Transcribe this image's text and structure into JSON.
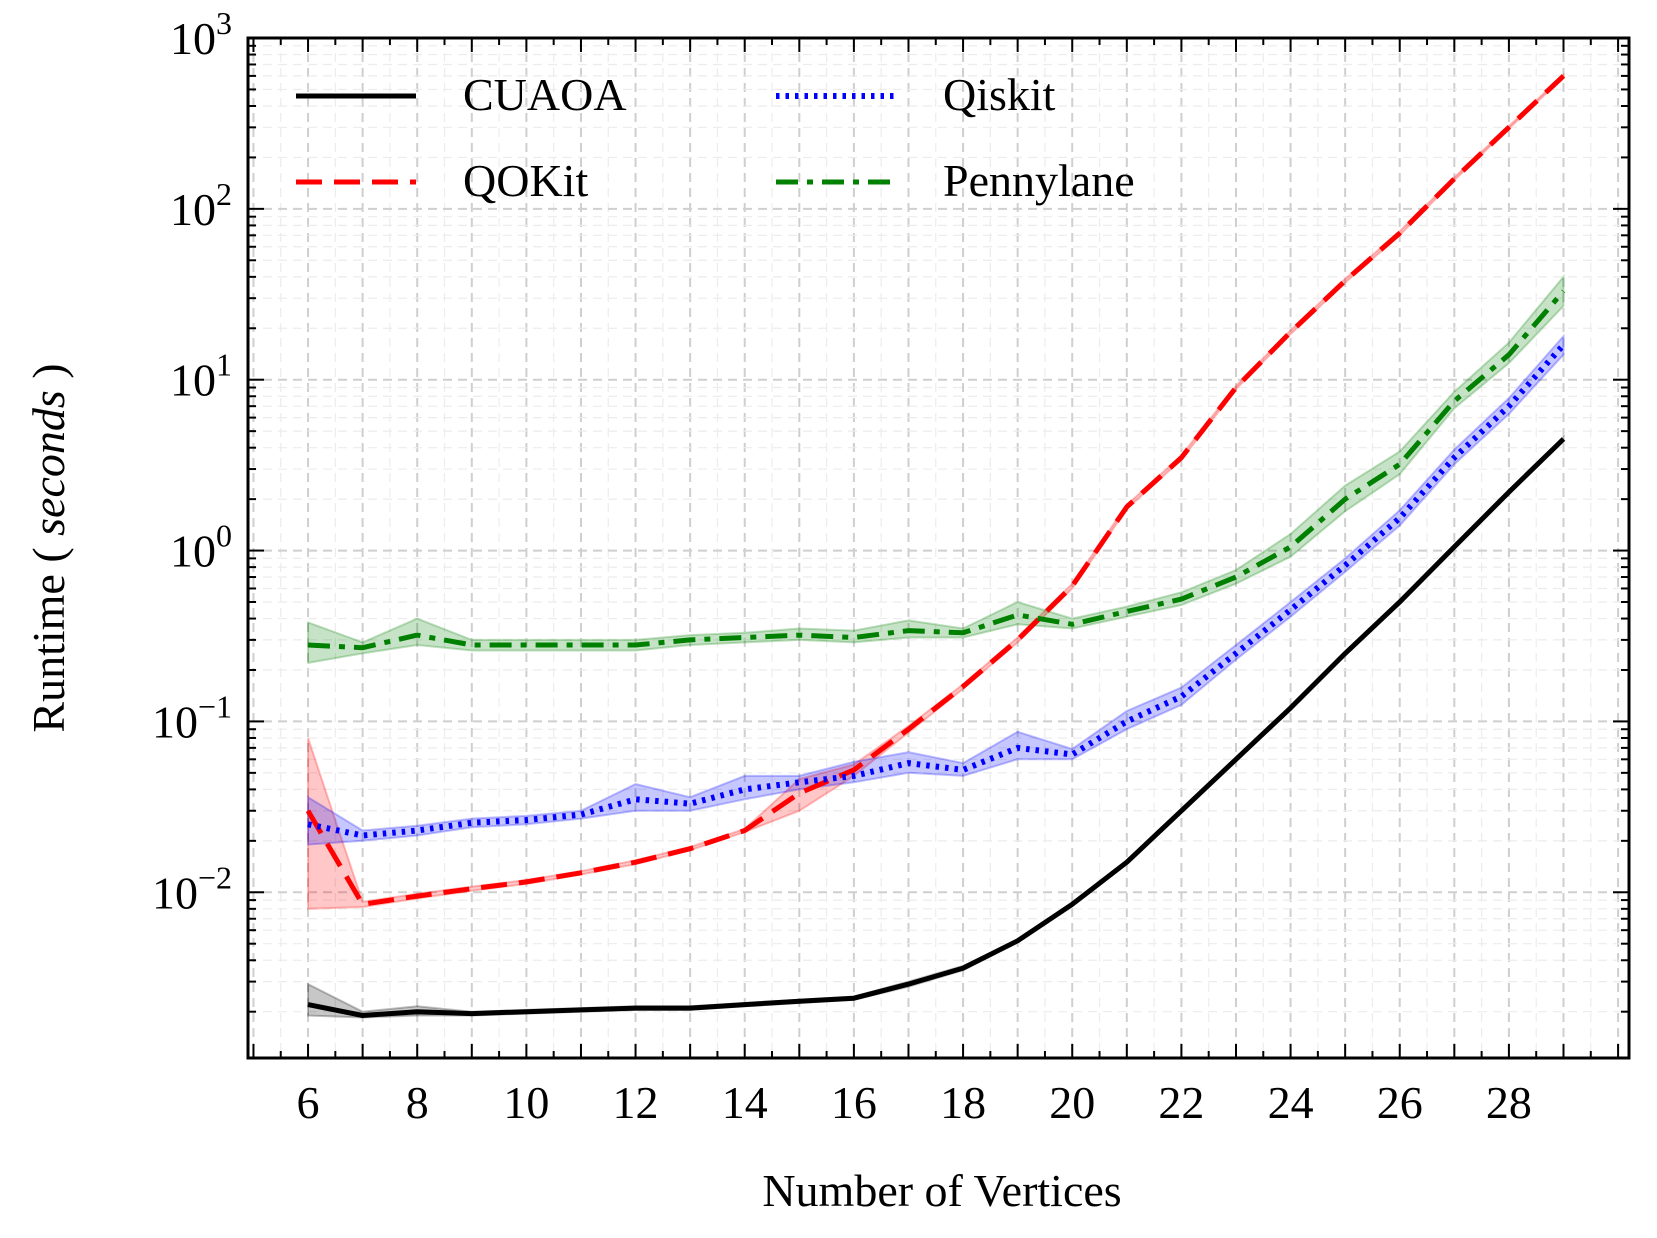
{
  "chart_data": {
    "type": "line",
    "title": "",
    "xlabel": "Number of Vertices",
    "ylabel": "Runtime ( ",
    "ylabel_italic": "seconds",
    "ylabel_end": " )",
    "xlim": [
      4.9,
      30.2
    ],
    "ylim_log10": [
      -2.97,
      3.0
    ],
    "y_scale": "log",
    "grid": true,
    "legend_position": "top-left",
    "x_ticks": [
      6,
      8,
      10,
      12,
      14,
      16,
      18,
      20,
      22,
      24,
      26,
      28
    ],
    "x_tick_labels": [
      "6",
      "8",
      "10",
      "12",
      "14",
      "16",
      "18",
      "20",
      "22",
      "24",
      "26",
      "28"
    ],
    "y_ticks": [
      {
        "base": "10",
        "exp": "3",
        "value": 1000
      },
      {
        "base": "10",
        "exp": "2",
        "value": 100
      },
      {
        "base": "10",
        "exp": "1",
        "value": 10
      },
      {
        "base": "10",
        "exp": "0",
        "value": 1
      },
      {
        "base": "10",
        "exp": "−1",
        "value": 0.1
      },
      {
        "base": "10",
        "exp": "−2",
        "value": 0.01
      }
    ],
    "x": [
      6,
      7,
      8,
      9,
      10,
      11,
      12,
      13,
      14,
      15,
      16,
      17,
      18,
      19,
      20,
      21,
      22,
      23,
      24,
      25,
      26,
      27,
      28,
      29
    ],
    "series": [
      {
        "name": "CUAOA",
        "color": "#000000",
        "dash": "solid",
        "values": [
          0.0022,
          0.0019,
          0.002,
          0.00195,
          0.002,
          0.00205,
          0.0021,
          0.0021,
          0.0022,
          0.0023,
          0.0024,
          0.0029,
          0.0036,
          0.0052,
          0.0085,
          0.015,
          0.03,
          0.06,
          0.12,
          0.25,
          0.5,
          1.05,
          2.2,
          4.5
        ],
        "band_lo": [
          0.0019,
          0.00185,
          0.0019,
          0.0019,
          0.00195,
          0.002,
          0.00205,
          0.00205,
          0.00215,
          0.00225,
          0.00235,
          0.0028,
          0.0035,
          0.0051,
          0.0083,
          0.0147,
          0.0295,
          0.059,
          0.118,
          0.245,
          0.49,
          1.03,
          2.15,
          4.4
        ],
        "band_hi": [
          0.0029,
          0.002,
          0.00215,
          0.002,
          0.00205,
          0.0021,
          0.00215,
          0.00215,
          0.00225,
          0.00235,
          0.00245,
          0.003,
          0.0037,
          0.0053,
          0.0087,
          0.0153,
          0.0305,
          0.061,
          0.122,
          0.255,
          0.51,
          1.07,
          2.25,
          4.6
        ]
      },
      {
        "name": "QOKit",
        "color": "#ff0000",
        "dash": "dashed",
        "values": [
          0.03,
          0.0085,
          0.0095,
          0.0105,
          0.0115,
          0.013,
          0.015,
          0.018,
          0.023,
          0.038,
          0.052,
          0.09,
          0.16,
          0.3,
          0.62,
          1.8,
          3.5,
          9.0,
          19.0,
          38.0,
          72.0,
          150.0,
          300.0,
          600.0
        ],
        "band_lo": [
          0.008,
          0.0082,
          0.0092,
          0.0102,
          0.0112,
          0.0127,
          0.0146,
          0.0176,
          0.0225,
          0.03,
          0.048,
          0.086,
          0.155,
          0.29,
          0.6,
          1.75,
          3.4,
          8.8,
          18.5,
          37.0,
          70.0,
          147.0,
          295.0,
          590.0
        ],
        "band_hi": [
          0.08,
          0.0088,
          0.0098,
          0.0108,
          0.0118,
          0.0133,
          0.0154,
          0.0184,
          0.0235,
          0.046,
          0.056,
          0.094,
          0.165,
          0.31,
          0.64,
          1.85,
          3.6,
          9.2,
          19.5,
          39.0,
          74.0,
          153.0,
          305.0,
          610.0
        ]
      },
      {
        "name": "Qiskit",
        "color": "#0000ff",
        "dash": "dotted",
        "values": [
          0.025,
          0.0215,
          0.023,
          0.0255,
          0.0265,
          0.0285,
          0.035,
          0.033,
          0.04,
          0.044,
          0.048,
          0.057,
          0.052,
          0.07,
          0.064,
          0.1,
          0.14,
          0.25,
          0.45,
          0.82,
          1.55,
          3.5,
          7.0,
          16.0
        ],
        "band_lo": [
          0.019,
          0.02,
          0.0215,
          0.024,
          0.025,
          0.027,
          0.03,
          0.03,
          0.035,
          0.04,
          0.044,
          0.05,
          0.048,
          0.06,
          0.06,
          0.09,
          0.125,
          0.23,
          0.41,
          0.75,
          1.4,
          3.2,
          6.3,
          14.0
        ],
        "band_hi": [
          0.036,
          0.023,
          0.0245,
          0.027,
          0.028,
          0.03,
          0.043,
          0.036,
          0.048,
          0.048,
          0.058,
          0.066,
          0.057,
          0.087,
          0.069,
          0.115,
          0.158,
          0.28,
          0.5,
          0.9,
          1.72,
          3.9,
          7.8,
          18.0
        ]
      },
      {
        "name": "Pennylane",
        "color": "#008000",
        "dash": "dashdot",
        "values": [
          0.28,
          0.27,
          0.32,
          0.28,
          0.28,
          0.28,
          0.28,
          0.3,
          0.31,
          0.32,
          0.31,
          0.34,
          0.33,
          0.42,
          0.37,
          0.44,
          0.52,
          0.7,
          1.05,
          2.0,
          3.2,
          7.5,
          14.0,
          33.0
        ],
        "band_lo": [
          0.22,
          0.25,
          0.28,
          0.26,
          0.26,
          0.26,
          0.26,
          0.28,
          0.29,
          0.3,
          0.29,
          0.31,
          0.31,
          0.37,
          0.35,
          0.41,
          0.48,
          0.64,
          0.92,
          1.7,
          2.8,
          6.8,
          12.5,
          27.0
        ],
        "band_hi": [
          0.38,
          0.29,
          0.4,
          0.3,
          0.3,
          0.3,
          0.3,
          0.32,
          0.33,
          0.35,
          0.34,
          0.39,
          0.35,
          0.5,
          0.4,
          0.47,
          0.57,
          0.77,
          1.25,
          2.4,
          3.8,
          8.5,
          16.5,
          40.0
        ]
      }
    ]
  }
}
